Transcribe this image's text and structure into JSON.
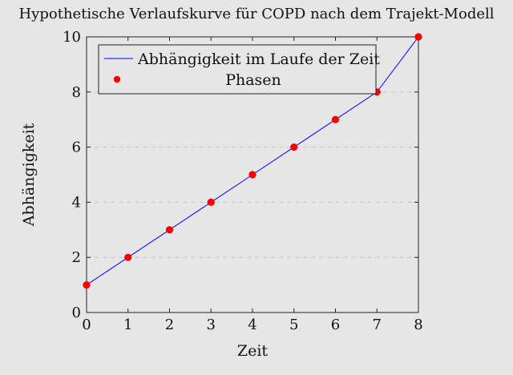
{
  "chart_data": {
    "type": "line",
    "title": "Hypothetische Verlaufskurve für COPD nach dem Trajekt-Modell",
    "xlabel": "Zeit",
    "ylabel": "Abhängigkeit",
    "xlim": [
      0,
      8
    ],
    "ylim": [
      0,
      10
    ],
    "xticks": [
      "0",
      "1",
      "2",
      "3",
      "4",
      "5",
      "6",
      "7",
      "8"
    ],
    "yticks": [
      "0",
      "2",
      "4",
      "6",
      "8",
      "10"
    ],
    "grid": "horizontal dashed",
    "legend_position": "top-left",
    "series": [
      {
        "name": "Abhängigkeit im Laufe der Zeit",
        "kind": "line",
        "color": "#0000ff",
        "x": [
          0,
          1,
          2,
          3,
          4,
          5,
          6,
          7,
          8
        ],
        "y": [
          1,
          2,
          3,
          4,
          5,
          6,
          7,
          8,
          10
        ]
      },
      {
        "name": "Phasen",
        "kind": "scatter",
        "color": "#ff0000",
        "x": [
          0,
          1,
          2,
          3,
          4,
          5,
          6,
          7,
          8
        ],
        "y": [
          1,
          2,
          3,
          4,
          5,
          6,
          7,
          8,
          10
        ]
      }
    ]
  }
}
